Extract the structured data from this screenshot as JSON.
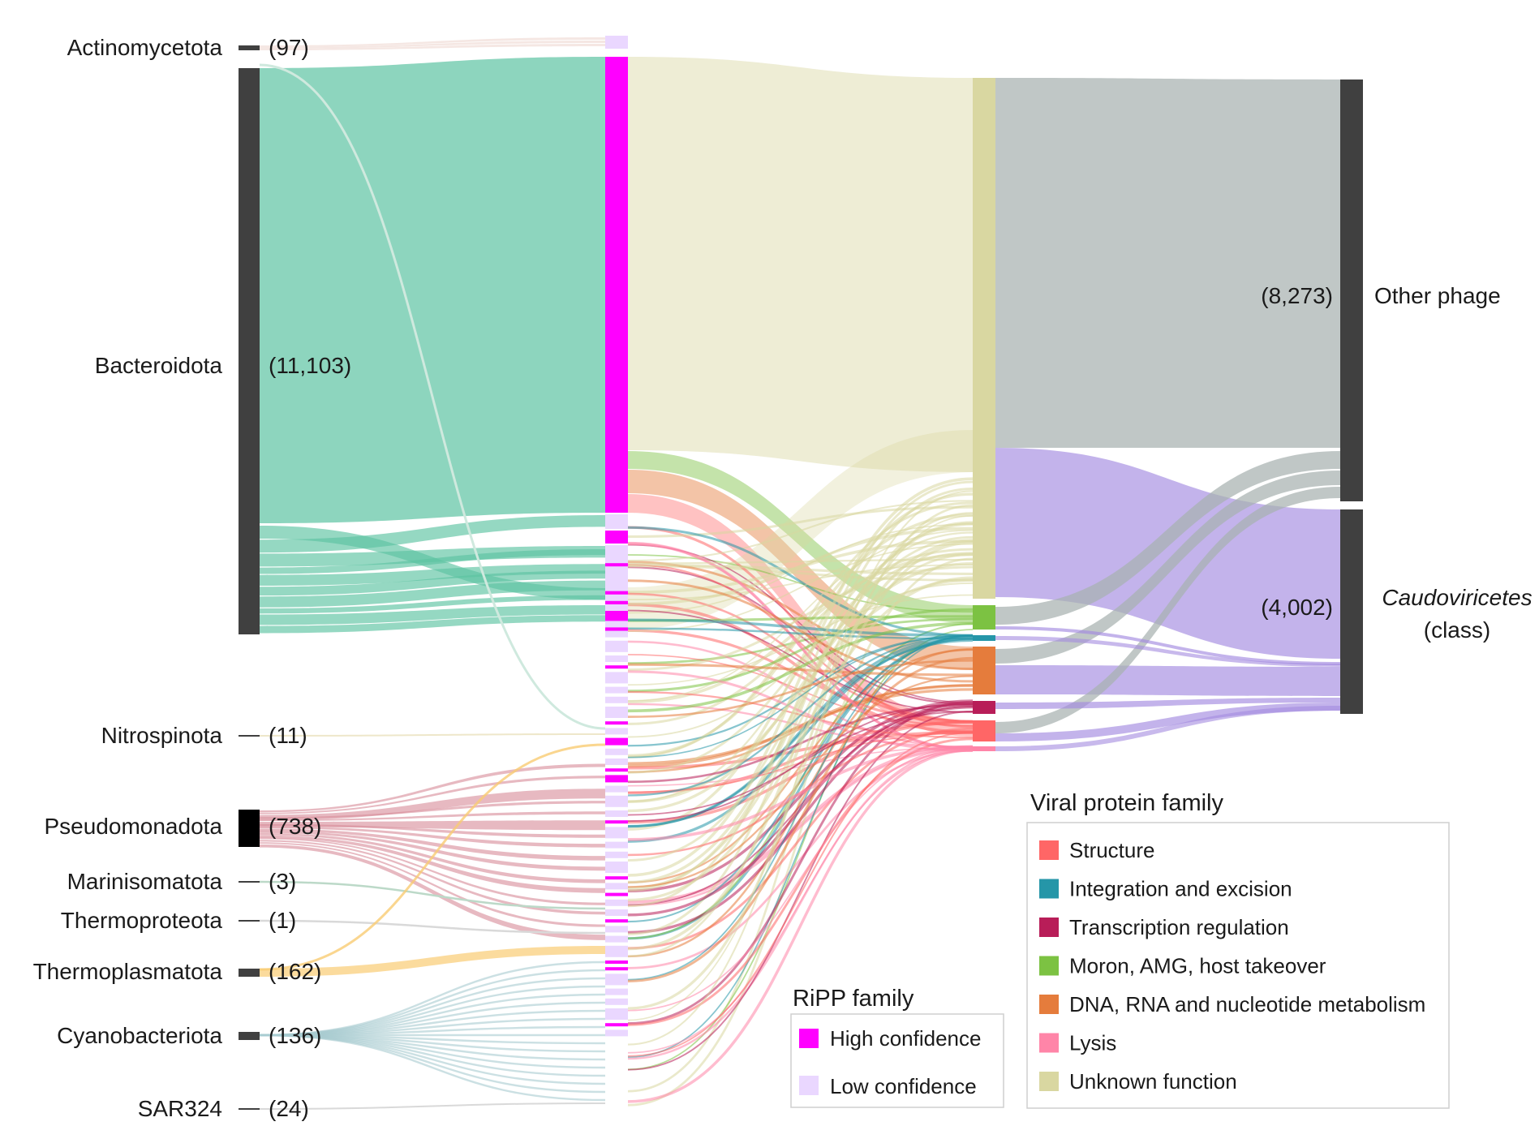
{
  "chart_data": {
    "type": "sankey",
    "title": "",
    "host_phyla": [
      {
        "name": "Actinomycetota",
        "count_label": "(97)",
        "value": 97
      },
      {
        "name": "Bacteroidota",
        "count_label": "(11,103)",
        "value": 11103
      },
      {
        "name": "Nitrospinota",
        "count_label": "(11)",
        "value": 11
      },
      {
        "name": "Pseudomonadota",
        "count_label": "(738)",
        "value": 738
      },
      {
        "name": "Marinisomatota",
        "count_label": "(3)",
        "value": 3
      },
      {
        "name": "Thermoproteota",
        "count_label": "(1)",
        "value": 1
      },
      {
        "name": "Thermoplasmatota",
        "count_label": "(162)",
        "value": 162
      },
      {
        "name": "Cyanobacteriota",
        "count_label": "(136)",
        "value": 136
      },
      {
        "name": "SAR324",
        "count_label": "(24)",
        "value": 24
      }
    ],
    "phage_groups": [
      {
        "name": "Other phage",
        "subname": "",
        "count_label": "(8,273)",
        "value": 8273,
        "italic": false
      },
      {
        "name": "Caudoviricetes",
        "subname": "(class)",
        "count_label": "(4,002)",
        "value": 4002,
        "italic": true
      }
    ],
    "ripp_legend": {
      "title": "RiPP family",
      "items": [
        {
          "label": "High confidence",
          "color": "#ff00ff"
        },
        {
          "label": "Low confidence",
          "color": "#ead7ff"
        }
      ]
    },
    "viral_legend": {
      "title": "Viral protein family",
      "items": [
        {
          "label": "Structure",
          "color": "#ff6666"
        },
        {
          "label": "Integration and excision",
          "color": "#2596a8"
        },
        {
          "label": "Transcription regulation",
          "color": "#b81d58"
        },
        {
          "label": "Moron, AMG, host takeover",
          "color": "#7cc242"
        },
        {
          "label": "DNA, RNA and nucleotide metabolism",
          "color": "#e57c3c"
        },
        {
          "label": "Lysis",
          "color": "#ff85a8"
        },
        {
          "label": "Unknown function",
          "color": "#d9d7a1"
        }
      ]
    },
    "colors": {
      "host_node": "#404040",
      "host_flow_bacteroidota": "#5cc3a2",
      "host_flow_pseudomonadota": "#d78a98",
      "host_flow_thermoplasmatota": "#f9cc73",
      "host_flow_cyanobacteriota": "#a8ccd0",
      "host_flow_other": "#e8d8c8",
      "other_phage_flow": "#a7b2b0",
      "caudoviricetes_flow": "#a38be0",
      "phage_node": "#404040"
    }
  }
}
